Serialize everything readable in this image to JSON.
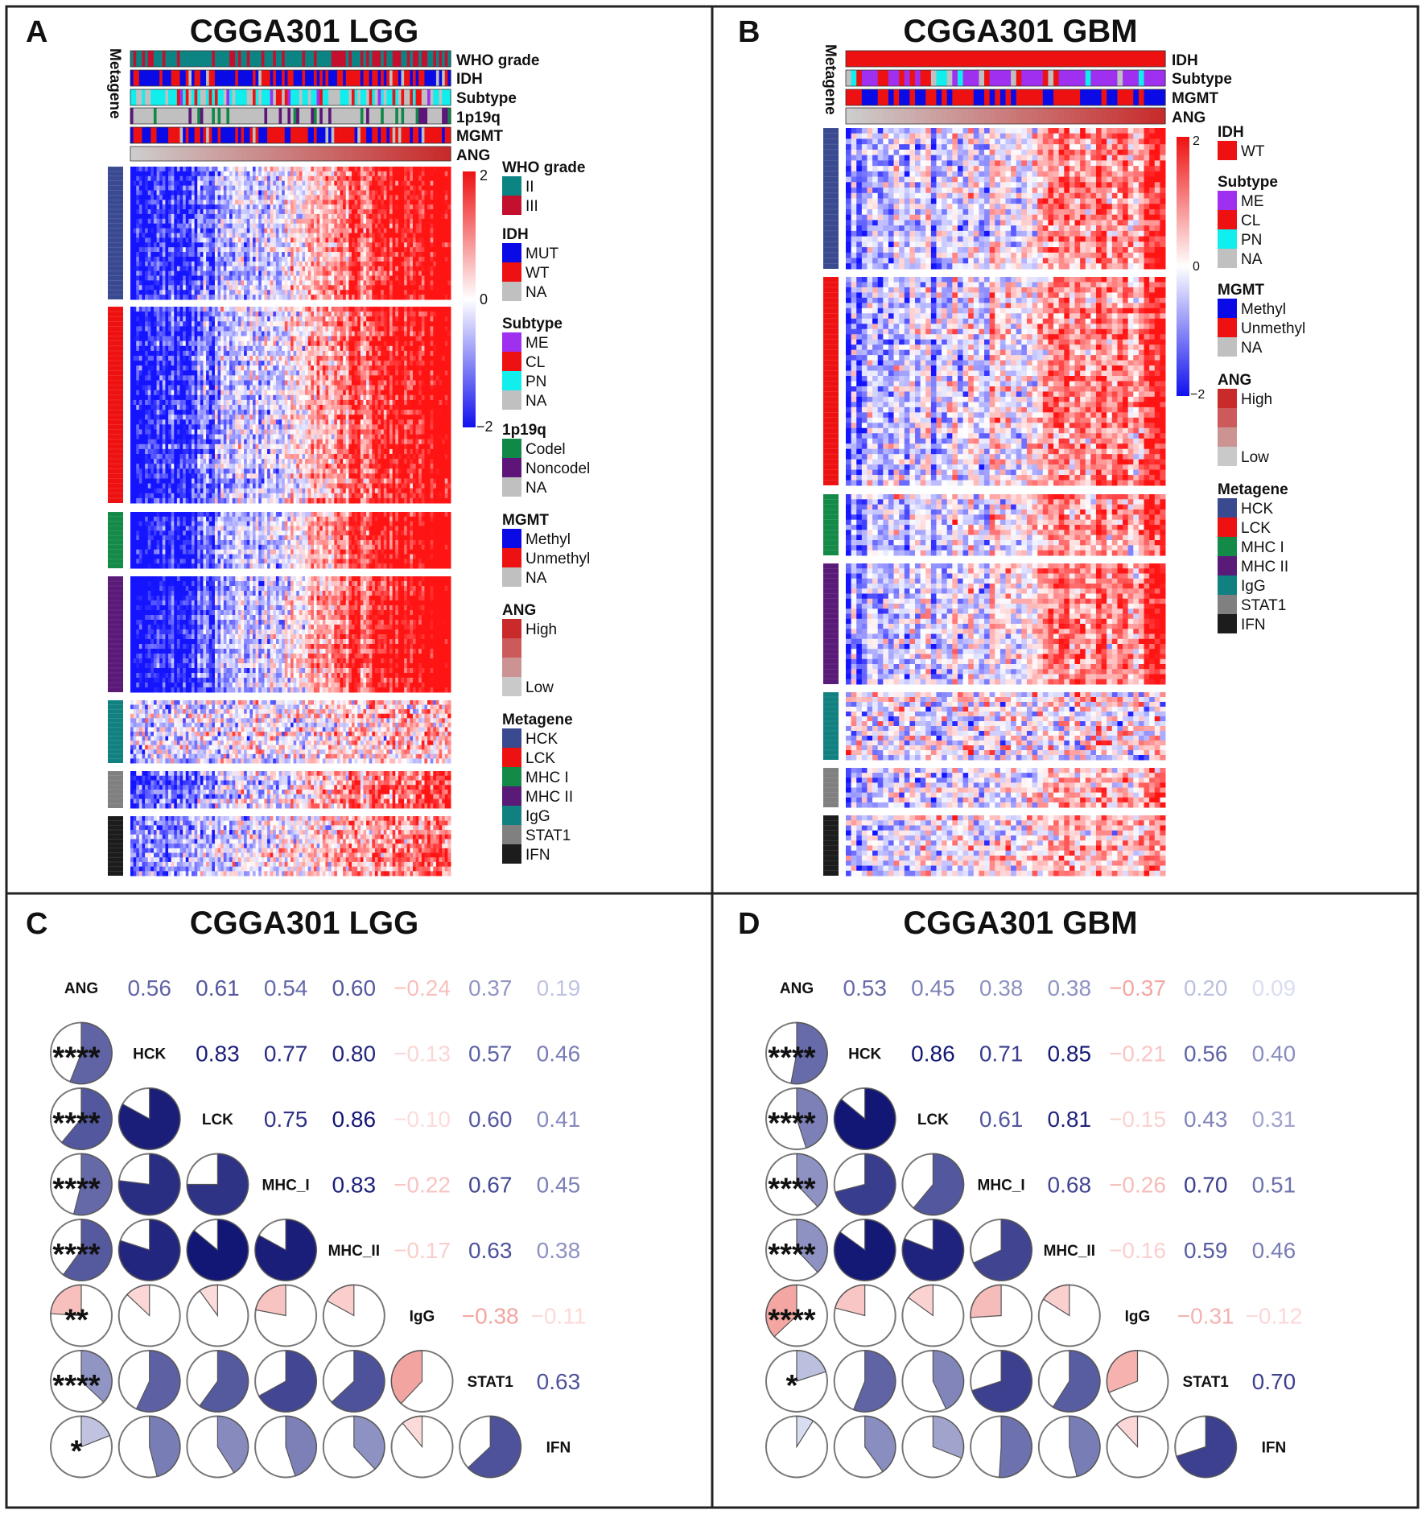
{
  "figure": {
    "panels": {
      "A": {
        "letter": "A",
        "title": "CGGA301 LGG"
      },
      "B": {
        "letter": "B",
        "title": "CGGA301 GBM"
      },
      "C": {
        "letter": "C",
        "title": "CGGA301 LGG"
      },
      "D": {
        "letter": "D",
        "title": "CGGA301 GBM"
      }
    }
  },
  "colors": {
    "grade_II": "#0d8484",
    "grade_III": "#c4102f",
    "mut": "#0a0ae6",
    "wt": "#ee1111",
    "na": "#c0c0c0",
    "me": "#a030f0",
    "cl": "#ee1111",
    "pn": "#10eeee",
    "codel": "#108848",
    "noncodel": "#5e1478",
    "methyl": "#0a0ae6",
    "unmethyl": "#ee1111",
    "ang_high": "#c92a2a",
    "ang_low": "#c9c9c9",
    "hck": "#3a4a90",
    "lck": "#ee1111",
    "mhc1": "#138a48",
    "mhc2": "#5a1a78",
    "igg": "#118080",
    "stat1": "#808080",
    "ifn": "#1c1c1c",
    "pos": "#0f2fa8",
    "neg": "#e85a4a",
    "heat_high": "#ee1111",
    "heat_low": "#1111ee"
  },
  "legend": {
    "scale_max": "2",
    "scale_mid": "0",
    "scale_min": "−2",
    "who_title": "WHO grade",
    "who_items": [
      "II",
      "III"
    ],
    "idh_title": "IDH",
    "idh_items": [
      "MUT",
      "WT",
      "NA"
    ],
    "idh_items_gbm": [
      "WT"
    ],
    "subtype_title": "Subtype",
    "subtype_items": [
      "ME",
      "CL",
      "PN",
      "NA"
    ],
    "codel_title": "1p19q",
    "codel_items": [
      "Codel",
      "Noncodel",
      "NA"
    ],
    "mgmt_title": "MGMT",
    "mgmt_items": [
      "Methyl",
      "Unmethyl",
      "NA"
    ],
    "ang_title": "ANG",
    "ang_items": [
      "High",
      "Low"
    ],
    "metagene_title": "Metagene",
    "metagene_items": [
      "HCK",
      "LCK",
      "MHC I",
      "MHC II",
      "IgG",
      "STAT1",
      "IFN"
    ]
  },
  "annotation_labels": {
    "lgg": [
      "WHO grade",
      "IDH",
      "Subtype",
      "1p19q",
      "MGMT",
      "ANG"
    ],
    "gbm": [
      "IDH",
      "Subtype",
      "MGMT",
      "ANG"
    ],
    "metagene": "Metagene"
  },
  "chart_data": [
    {
      "type": "heatmap",
      "panel": "A",
      "title": "CGGA301 LGG",
      "row_groups": [
        "HCK",
        "LCK",
        "MHC I",
        "MHC II",
        "IgG",
        "STAT1",
        "IFN"
      ],
      "color_range": [
        -2,
        2
      ],
      "columns_sorted_by": "ANG"
    },
    {
      "type": "heatmap",
      "panel": "B",
      "title": "CGGA301 GBM",
      "row_groups": [
        "HCK",
        "LCK",
        "MHC I",
        "MHC II",
        "IgG",
        "STAT1",
        "IFN"
      ],
      "color_range": [
        -2,
        2
      ],
      "columns_sorted_by": "ANG"
    },
    {
      "type": "table",
      "panel": "C",
      "title": "CGGA301 LGG",
      "labels": [
        "ANG",
        "HCK",
        "LCK",
        "MHC_I",
        "MHC_II",
        "IgG",
        "STAT1",
        "IFN"
      ],
      "upper": [
        [
          "0.56",
          "0.61",
          "0.54",
          "0.60",
          "−0.24",
          "0.37",
          "0.19"
        ],
        [
          "0.83",
          "0.77",
          "0.80",
          "−0.13",
          "0.57",
          "0.46"
        ],
        [
          "0.75",
          "0.86",
          "−0.10",
          "0.60",
          "0.41"
        ],
        [
          "0.83",
          "−0.22",
          "0.67",
          "0.45"
        ],
        [
          "−0.17",
          "0.63",
          "0.38"
        ],
        [
          "−0.38",
          "−0.11"
        ],
        [
          "0.63"
        ]
      ],
      "values": [
        [
          0.56,
          0.61,
          0.54,
          0.6,
          -0.24,
          0.37,
          0.19
        ],
        [
          0.83,
          0.77,
          0.8,
          -0.13,
          0.57,
          0.46
        ],
        [
          0.75,
          0.86,
          -0.1,
          0.6,
          0.41
        ],
        [
          0.83,
          -0.22,
          0.67,
          0.45
        ],
        [
          -0.17,
          0.63,
          0.38
        ],
        [
          -0.38,
          -0.11
        ],
        [
          0.63
        ]
      ],
      "significance": [
        "****",
        "****",
        "****",
        "****",
        "**",
        "****",
        "*"
      ]
    },
    {
      "type": "table",
      "panel": "D",
      "title": "CGGA301 GBM",
      "labels": [
        "ANG",
        "HCK",
        "LCK",
        "MHC_I",
        "MHC_II",
        "IgG",
        "STAT1",
        "IFN"
      ],
      "upper": [
        [
          "0.53",
          "0.45",
          "0.38",
          "0.38",
          "−0.37",
          "0.20",
          "0.09"
        ],
        [
          "0.86",
          "0.71",
          "0.85",
          "−0.21",
          "0.56",
          "0.40"
        ],
        [
          "0.61",
          "0.81",
          "−0.15",
          "0.43",
          "0.31"
        ],
        [
          "0.68",
          "−0.26",
          "0.70",
          "0.51"
        ],
        [
          "−0.16",
          "0.59",
          "0.46"
        ],
        [
          "−0.31",
          "−0.12"
        ],
        [
          "0.70"
        ]
      ],
      "values": [
        [
          0.53,
          0.45,
          0.38,
          0.38,
          -0.37,
          0.2,
          0.09
        ],
        [
          0.86,
          0.71,
          0.85,
          -0.21,
          0.56,
          0.4
        ],
        [
          0.61,
          0.81,
          -0.15,
          0.43,
          0.31
        ],
        [
          0.68,
          -0.26,
          0.7,
          0.51
        ],
        [
          -0.16,
          0.59,
          0.46
        ],
        [
          -0.31,
          -0.12
        ],
        [
          0.7
        ]
      ],
      "significance": [
        "****",
        "****",
        "****",
        "****",
        "****",
        "*",
        ""
      ]
    }
  ]
}
